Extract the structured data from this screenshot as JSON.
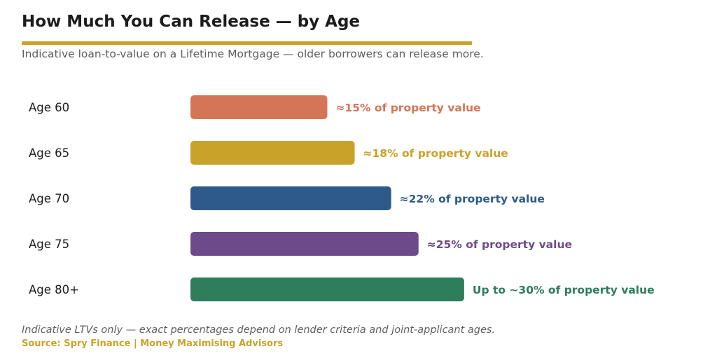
{
  "title": "How Much You Can Release — by Age",
  "subtitle": "Indicative loan-to-value on a Lifetime Mortgage — older borrowers can release more.",
  "footnote": "Indicative LTVs only — exact percentages depend on lender criteria and joint-applicant ages.",
  "source": "Source: Spry Finance  |  Money Maximising Advisors",
  "accent_color": "#c9a22a",
  "chart_data": {
    "type": "bar",
    "orientation": "horizontal",
    "categories": [
      "Age 60",
      "Age 65",
      "Age 70",
      "Age 75",
      "Age 80+"
    ],
    "values": [
      15,
      18,
      22,
      25,
      30
    ],
    "value_labels": [
      "≈15% of property value",
      "≈18% of property value",
      "≈22% of property value",
      "≈25% of property value",
      "Up to ~30% of property value"
    ],
    "colors": [
      "#d47556",
      "#c9a22a",
      "#2e5a8a",
      "#6d4b8a",
      "#2e7d5b"
    ],
    "xlim": [
      0,
      36
    ],
    "grid": false,
    "legend": "none"
  }
}
